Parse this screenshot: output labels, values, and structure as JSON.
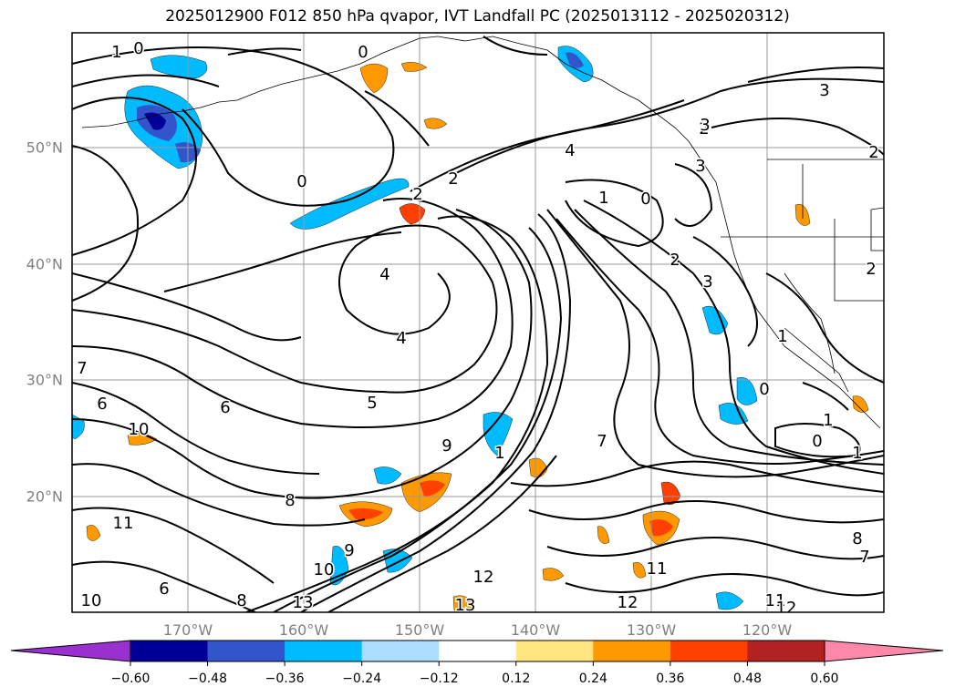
{
  "title": "2025012900 F012 850 hPa qvapor, IVT Landfall PC (2025013112 - 2025020312)",
  "map": {
    "lon_ticks": [
      "170°W",
      "160°W",
      "150°W",
      "140°W",
      "130°W",
      "120°W"
    ],
    "lat_ticks": [
      "50°N",
      "40°N",
      "30°N",
      "20°N"
    ],
    "grid": true,
    "contour_labels": [
      "1",
      "0",
      "0",
      "2",
      "4",
      "2",
      "1",
      "0",
      "3",
      "2",
      "3",
      "0",
      "4",
      "4",
      "5",
      "6",
      "6",
      "7",
      "7",
      "8",
      "9",
      "9",
      "10",
      "10",
      "10",
      "11",
      "11",
      "11",
      "12",
      "12",
      "12",
      "13",
      "13",
      "6",
      "8",
      "1",
      "2",
      "3",
      "1",
      "3",
      "2",
      "1",
      "0",
      "1",
      "8",
      "7",
      "0",
      "2"
    ]
  },
  "colorbar": {
    "tick_labels": [
      "−0.60",
      "−0.48",
      "−0.36",
      "−0.24",
      "−0.12",
      "0.12",
      "0.24",
      "0.36",
      "0.48",
      "0.60"
    ],
    "colors": [
      "#9b30d0",
      "#000099",
      "#3355cc",
      "#00bbff",
      "#aaddff",
      "#ffffff",
      "#ffe680",
      "#ff9900",
      "#ff4000",
      "#b22222",
      "#ff88aa"
    ]
  }
}
